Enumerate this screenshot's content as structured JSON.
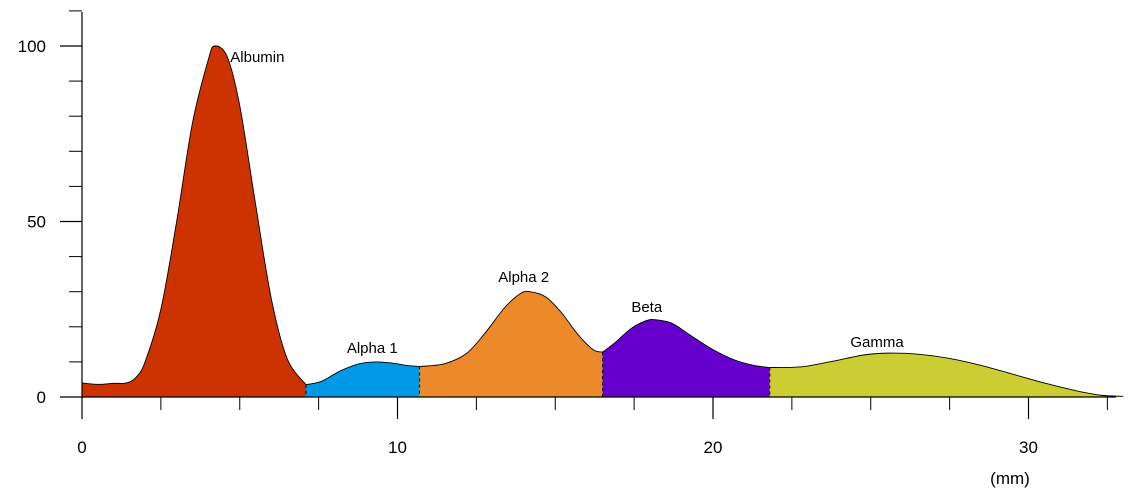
{
  "chart_data": {
    "type": "area",
    "title": "",
    "xlabel": "(mm)",
    "ylabel": "",
    "xlim": [
      0,
      33.5
    ],
    "ylim": [
      0,
      110
    ],
    "x_major_ticks": [
      0,
      10,
      20,
      30
    ],
    "x_tick_labels": [
      "0",
      "10",
      "20",
      "30"
    ],
    "x_minor_step": 2.5,
    "y_major_ticks": [
      0,
      50,
      100
    ],
    "y_tick_labels": [
      "0",
      "50",
      "100"
    ],
    "y_minor_step": 10,
    "grid": false,
    "outline_color": "#000000",
    "series": [
      {
        "name": "Albumin",
        "color": "#cc3300",
        "x_range": [
          0,
          7.1
        ],
        "label_at": [
          4.7,
          100
        ],
        "points": [
          [
            0,
            4
          ],
          [
            0.5,
            3.6
          ],
          [
            1.0,
            3.9
          ],
          [
            1.4,
            4
          ],
          [
            1.7,
            5.5
          ],
          [
            2.0,
            10
          ],
          [
            2.5,
            25
          ],
          [
            3.0,
            50
          ],
          [
            3.5,
            78
          ],
          [
            4.0,
            96
          ],
          [
            4.2,
            100
          ],
          [
            4.6,
            97
          ],
          [
            5.0,
            83
          ],
          [
            5.5,
            55
          ],
          [
            6.0,
            28
          ],
          [
            6.5,
            11
          ],
          [
            7.1,
            3.5
          ]
        ]
      },
      {
        "name": "Alpha 1",
        "color": "#0099e6",
        "x_range": [
          7.1,
          10.7
        ],
        "label_at": [
          9.2,
          10.8
        ],
        "points": [
          [
            7.1,
            3.5
          ],
          [
            7.6,
            4.5
          ],
          [
            8.2,
            7.5
          ],
          [
            8.8,
            9.5
          ],
          [
            9.3,
            10
          ],
          [
            9.8,
            9.7
          ],
          [
            10.3,
            9.0
          ],
          [
            10.7,
            8.7
          ]
        ]
      },
      {
        "name": "Alpha 2",
        "color": "#ec8a2b",
        "x_range": [
          10.7,
          16.5
        ],
        "label_at": [
          14.0,
          31
        ],
        "points": [
          [
            10.7,
            8.7
          ],
          [
            11.5,
            9.5
          ],
          [
            12.2,
            12.5
          ],
          [
            12.8,
            18.5
          ],
          [
            13.4,
            25.5
          ],
          [
            13.9,
            29.5
          ],
          [
            14.2,
            30
          ],
          [
            14.7,
            28.5
          ],
          [
            15.2,
            24
          ],
          [
            15.7,
            18
          ],
          [
            16.2,
            13.5
          ],
          [
            16.5,
            12.8
          ]
        ]
      },
      {
        "name": "Beta",
        "color": "#6600cc",
        "x_range": [
          16.5,
          21.8
        ],
        "label_at": [
          17.9,
          22.5
        ],
        "points": [
          [
            16.5,
            12.8
          ],
          [
            16.9,
            15.5
          ],
          [
            17.4,
            19.5
          ],
          [
            17.9,
            21.8
          ],
          [
            18.2,
            22
          ],
          [
            18.7,
            21
          ],
          [
            19.3,
            17.5
          ],
          [
            20.0,
            13.5
          ],
          [
            20.7,
            10.5
          ],
          [
            21.3,
            9
          ],
          [
            21.8,
            8.4
          ]
        ]
      },
      {
        "name": "Gamma",
        "color": "#cccc33",
        "x_range": [
          21.8,
          33.0
        ],
        "label_at": [
          25.2,
          12.5
        ],
        "points": [
          [
            21.8,
            8.4
          ],
          [
            22.8,
            8.6
          ],
          [
            23.8,
            10.2
          ],
          [
            24.8,
            12
          ],
          [
            25.6,
            12.5
          ],
          [
            26.5,
            12.2
          ],
          [
            27.5,
            11
          ],
          [
            28.5,
            9
          ],
          [
            29.5,
            6.5
          ],
          [
            30.5,
            4
          ],
          [
            31.5,
            1.8
          ],
          [
            32.3,
            0.5
          ],
          [
            33.0,
            0.2
          ]
        ]
      }
    ]
  }
}
